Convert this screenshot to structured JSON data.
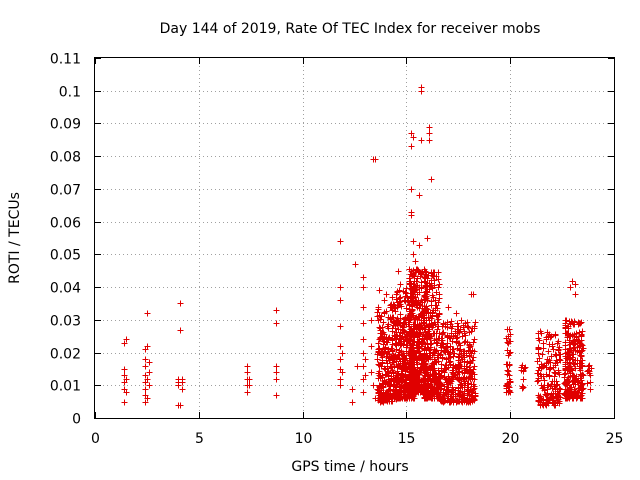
{
  "chart_data": {
    "type": "scatter",
    "title": "Day 144 of 2019, Rate Of TEC Index for receiver mobs",
    "xlabel": "GPS time / hours",
    "ylabel": "ROTI / TECUs",
    "xlim": [
      0,
      25
    ],
    "ylim": [
      0,
      0.11
    ],
    "xticks": [
      0,
      5,
      10,
      15,
      20,
      25
    ],
    "yticks": [
      0,
      0.01,
      0.02,
      0.03,
      0.04,
      0.05,
      0.06,
      0.07,
      0.08,
      0.09,
      0.1,
      0.11
    ],
    "grid": true,
    "marker": "+",
    "color": "#e00000",
    "series": [
      {
        "name": "ROTI",
        "points": [
          [
            1.4,
            0.005
          ],
          [
            1.4,
            0.009
          ],
          [
            1.4,
            0.011
          ],
          [
            1.4,
            0.013
          ],
          [
            1.4,
            0.015
          ],
          [
            1.4,
            0.023
          ],
          [
            1.5,
            0.024
          ],
          [
            1.5,
            0.012
          ],
          [
            1.5,
            0.008
          ],
          [
            2.4,
            0.005
          ],
          [
            2.4,
            0.007
          ],
          [
            2.4,
            0.009
          ],
          [
            2.4,
            0.011
          ],
          [
            2.4,
            0.013
          ],
          [
            2.4,
            0.016
          ],
          [
            2.4,
            0.018
          ],
          [
            2.4,
            0.021
          ],
          [
            2.5,
            0.022
          ],
          [
            2.5,
            0.032
          ],
          [
            2.5,
            0.006
          ],
          [
            2.5,
            0.012
          ],
          [
            2.6,
            0.014
          ],
          [
            2.6,
            0.017
          ],
          [
            2.6,
            0.01
          ],
          [
            4.0,
            0.004
          ],
          [
            4.0,
            0.01
          ],
          [
            4.0,
            0.011
          ],
          [
            4.0,
            0.012
          ],
          [
            4.1,
            0.027
          ],
          [
            4.1,
            0.035
          ],
          [
            4.1,
            0.004
          ],
          [
            4.2,
            0.009
          ],
          [
            4.2,
            0.011
          ],
          [
            4.2,
            0.012
          ],
          [
            7.3,
            0.008
          ],
          [
            7.3,
            0.01
          ],
          [
            7.3,
            0.012
          ],
          [
            7.3,
            0.014
          ],
          [
            7.3,
            0.016
          ],
          [
            7.4,
            0.01
          ],
          [
            7.4,
            0.012
          ],
          [
            8.7,
            0.007
          ],
          [
            8.7,
            0.012
          ],
          [
            8.7,
            0.014
          ],
          [
            8.7,
            0.016
          ],
          [
            8.7,
            0.029
          ],
          [
            8.7,
            0.033
          ],
          [
            11.8,
            0.054
          ],
          [
            11.8,
            0.04
          ],
          [
            11.8,
            0.036
          ],
          [
            11.8,
            0.028
          ],
          [
            11.8,
            0.022
          ],
          [
            11.8,
            0.018
          ],
          [
            11.8,
            0.015
          ],
          [
            11.8,
            0.012
          ],
          [
            11.8,
            0.01
          ],
          [
            11.9,
            0.02
          ],
          [
            11.9,
            0.014
          ],
          [
            12.5,
            0.047
          ],
          [
            12.4,
            0.009
          ],
          [
            12.4,
            0.005
          ],
          [
            12.6,
            0.016
          ],
          [
            12.9,
            0.043
          ],
          [
            12.9,
            0.04
          ],
          [
            12.9,
            0.034
          ],
          [
            12.9,
            0.029
          ],
          [
            12.9,
            0.024
          ],
          [
            12.9,
            0.02
          ],
          [
            12.9,
            0.016
          ],
          [
            12.9,
            0.012
          ],
          [
            12.9,
            0.008
          ],
          [
            13.0,
            0.018
          ],
          [
            13.0,
            0.013
          ],
          [
            13.4,
            0.079
          ],
          [
            13.5,
            0.079
          ],
          [
            13.3,
            0.03
          ],
          [
            13.3,
            0.022
          ],
          [
            13.3,
            0.014
          ],
          [
            13.4,
            0.01
          ],
          [
            13.5,
            0.006
          ],
          [
            13.6,
            0.018
          ]
        ]
      }
    ],
    "clusters": [
      {
        "x": [
          13.6,
          14.5
        ],
        "y": [
          0.005,
          0.035
        ],
        "n": 280,
        "tall": [
          [
            13.7,
            0.039
          ],
          [
            14.0,
            0.038
          ],
          [
            13.9,
            0.036
          ],
          [
            14.3,
            0.037
          ]
        ]
      },
      {
        "x": [
          14.5,
          15.4
        ],
        "y": [
          0.006,
          0.04
        ],
        "n": 360,
        "tall": [
          [
            14.7,
            0.041
          ],
          [
            14.6,
            0.045
          ]
        ]
      },
      {
        "x": [
          15.1,
          16.0
        ],
        "y": [
          0.008,
          0.046
        ],
        "n": 420,
        "tall": [
          [
            15.2,
            0.087
          ],
          [
            15.3,
            0.086
          ],
          [
            15.2,
            0.083
          ],
          [
            15.2,
            0.07
          ],
          [
            15.2,
            0.063
          ],
          [
            15.2,
            0.062
          ],
          [
            15.3,
            0.054
          ],
          [
            15.3,
            0.05
          ],
          [
            15.4,
            0.048
          ],
          [
            15.6,
            0.068
          ],
          [
            15.7,
            0.1
          ],
          [
            15.7,
            0.101
          ],
          [
            15.6,
            0.053
          ],
          [
            15.7,
            0.085
          ],
          [
            16.1,
            0.087
          ],
          [
            16.1,
            0.089
          ],
          [
            16.1,
            0.085
          ],
          [
            16.2,
            0.073
          ],
          [
            16.0,
            0.055
          ]
        ]
      },
      {
        "x": [
          15.8,
          16.6
        ],
        "y": [
          0.006,
          0.045
        ],
        "n": 300,
        "tall": []
      },
      {
        "x": [
          16.6,
          18.3
        ],
        "y": [
          0.005,
          0.03
        ],
        "n": 380,
        "tall": [
          [
            17.0,
            0.034
          ],
          [
            17.4,
            0.032
          ],
          [
            18.1,
            0.038
          ],
          [
            18.2,
            0.038
          ],
          [
            17.8,
            0.029
          ]
        ]
      },
      {
        "x": [
          19.8,
          20.0
        ],
        "y": [
          0.008,
          0.028
        ],
        "n": 40,
        "tall": []
      },
      {
        "x": [
          20.5,
          20.7
        ],
        "y": [
          0.009,
          0.02
        ],
        "n": 12,
        "tall": []
      },
      {
        "x": [
          21.3,
          22.4
        ],
        "y": [
          0.004,
          0.027
        ],
        "n": 160,
        "tall": [
          [
            21.8,
            0.025
          ],
          [
            22.0,
            0.022
          ]
        ]
      },
      {
        "x": [
          22.6,
          23.5
        ],
        "y": [
          0.006,
          0.03
        ],
        "n": 260,
        "tall": [
          [
            23.0,
            0.042
          ],
          [
            23.1,
            0.041
          ],
          [
            22.9,
            0.04
          ],
          [
            23.1,
            0.038
          ],
          [
            23.3,
            0.029
          ]
        ]
      },
      {
        "x": [
          23.7,
          23.9
        ],
        "y": [
          0.008,
          0.017
        ],
        "n": 12,
        "tall": []
      }
    ]
  }
}
